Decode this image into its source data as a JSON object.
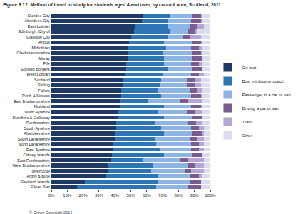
{
  "chart_data": {
    "type": "bar",
    "title": "Figure 9.12: Method of travel to study for students aged 4 and over, by council area, Scotland, 2011",
    "orientation": "horizontal",
    "stacked": true,
    "grid": false,
    "legend": "right",
    "footnote": "© Crown Copyright 2014",
    "categories": [
      "Dundee City",
      "Aberdeen City",
      "East Lothian",
      "Edinburgh, City of",
      "Glasgow City",
      "Angus",
      "Midlothian",
      "Clackmannanshire",
      "Moray",
      "Fife",
      "Scottish Borders",
      "West Lothian",
      "Scotland",
      "Stirling",
      "Falkirk",
      "Perth & Kinross",
      "East Dunbartonshire",
      "Highland",
      "North Ayrshire",
      "Dumfries & Galloway",
      "Renfrewshire",
      "South Ayrshire",
      "Aberdeenshire",
      "South Lanarkshire",
      "North Lanarkshire",
      "East Ayrshire",
      "Orkney Islands",
      "East Renfrewshire",
      "West Dunbartonshire",
      "Inverclyde",
      "Argyll & Bute",
      "Shetland Islands",
      "Eilean Siar"
    ],
    "xlim": [
      0,
      100
    ],
    "xticks": [
      {
        "value": 0,
        "label": "0%"
      },
      {
        "value": 10,
        "label": "10%"
      },
      {
        "value": 20,
        "label": "20%"
      },
      {
        "value": 30,
        "label": "30%"
      },
      {
        "value": 40,
        "label": "40%"
      },
      {
        "value": 50,
        "label": "50%"
      },
      {
        "value": 60,
        "label": "60%"
      },
      {
        "value": 70,
        "label": "70%"
      },
      {
        "value": 80,
        "label": "80%"
      },
      {
        "value": 90,
        "label": "90%"
      },
      {
        "value": 100,
        "label": "100%"
      }
    ],
    "series": [
      {
        "name": "On foot",
        "color": "#1f3864",
        "values": [
          58,
          57,
          53,
          52,
          50,
          49,
          48,
          48,
          48,
          47,
          47,
          46,
          45,
          45,
          44,
          44,
          43,
          43,
          42,
          42,
          41,
          41,
          40,
          40,
          39,
          39,
          38,
          37,
          36,
          36,
          34,
          21,
          16
        ]
      },
      {
        "name": "Bus, minibus or coach",
        "color": "#2e75b6",
        "values": [
          17,
          16,
          20,
          23,
          23,
          22,
          24,
          22,
          23,
          24,
          26,
          24,
          24,
          23,
          23,
          25,
          18,
          28,
          25,
          29,
          24,
          28,
          31,
          25,
          27,
          29,
          33,
          21,
          28,
          27,
          33,
          46,
          50
        ]
      },
      {
        "name": "Passenger in a car or van",
        "color": "#8db4e2",
        "values": [
          14,
          15,
          14,
          11,
          10,
          18,
          16,
          19,
          18,
          17,
          16,
          18,
          16,
          17,
          20,
          19,
          20,
          17,
          18,
          18,
          21,
          19,
          18,
          22,
          22,
          20,
          18,
          23,
          22,
          21,
          20,
          20,
          20
        ]
      },
      {
        "name": "Driving a car or van",
        "color": "#7a5c8e",
        "values": [
          5,
          6,
          5,
          4,
          4,
          5,
          5,
          5,
          6,
          5,
          6,
          5,
          5,
          5,
          5,
          6,
          5,
          6,
          5,
          6,
          5,
          5,
          6,
          5,
          5,
          5,
          6,
          5,
          4,
          4,
          6,
          7,
          8
        ]
      },
      {
        "name": "Train",
        "color": "#b4a7d6",
        "values": [
          1,
          1,
          4,
          2,
          7,
          1,
          2,
          1,
          0,
          2,
          0,
          3,
          4,
          4,
          3,
          1,
          9,
          1,
          5,
          0,
          4,
          3,
          1,
          4,
          3,
          3,
          0,
          10,
          6,
          8,
          2,
          0,
          0
        ]
      },
      {
        "name": "Other",
        "color": "#dcdcef",
        "values": [
          5,
          5,
          4,
          8,
          6,
          5,
          5,
          5,
          5,
          5,
          5,
          4,
          6,
          6,
          5,
          5,
          5,
          5,
          5,
          5,
          5,
          4,
          4,
          4,
          4,
          4,
          5,
          4,
          4,
          4,
          5,
          6,
          6
        ]
      }
    ]
  }
}
